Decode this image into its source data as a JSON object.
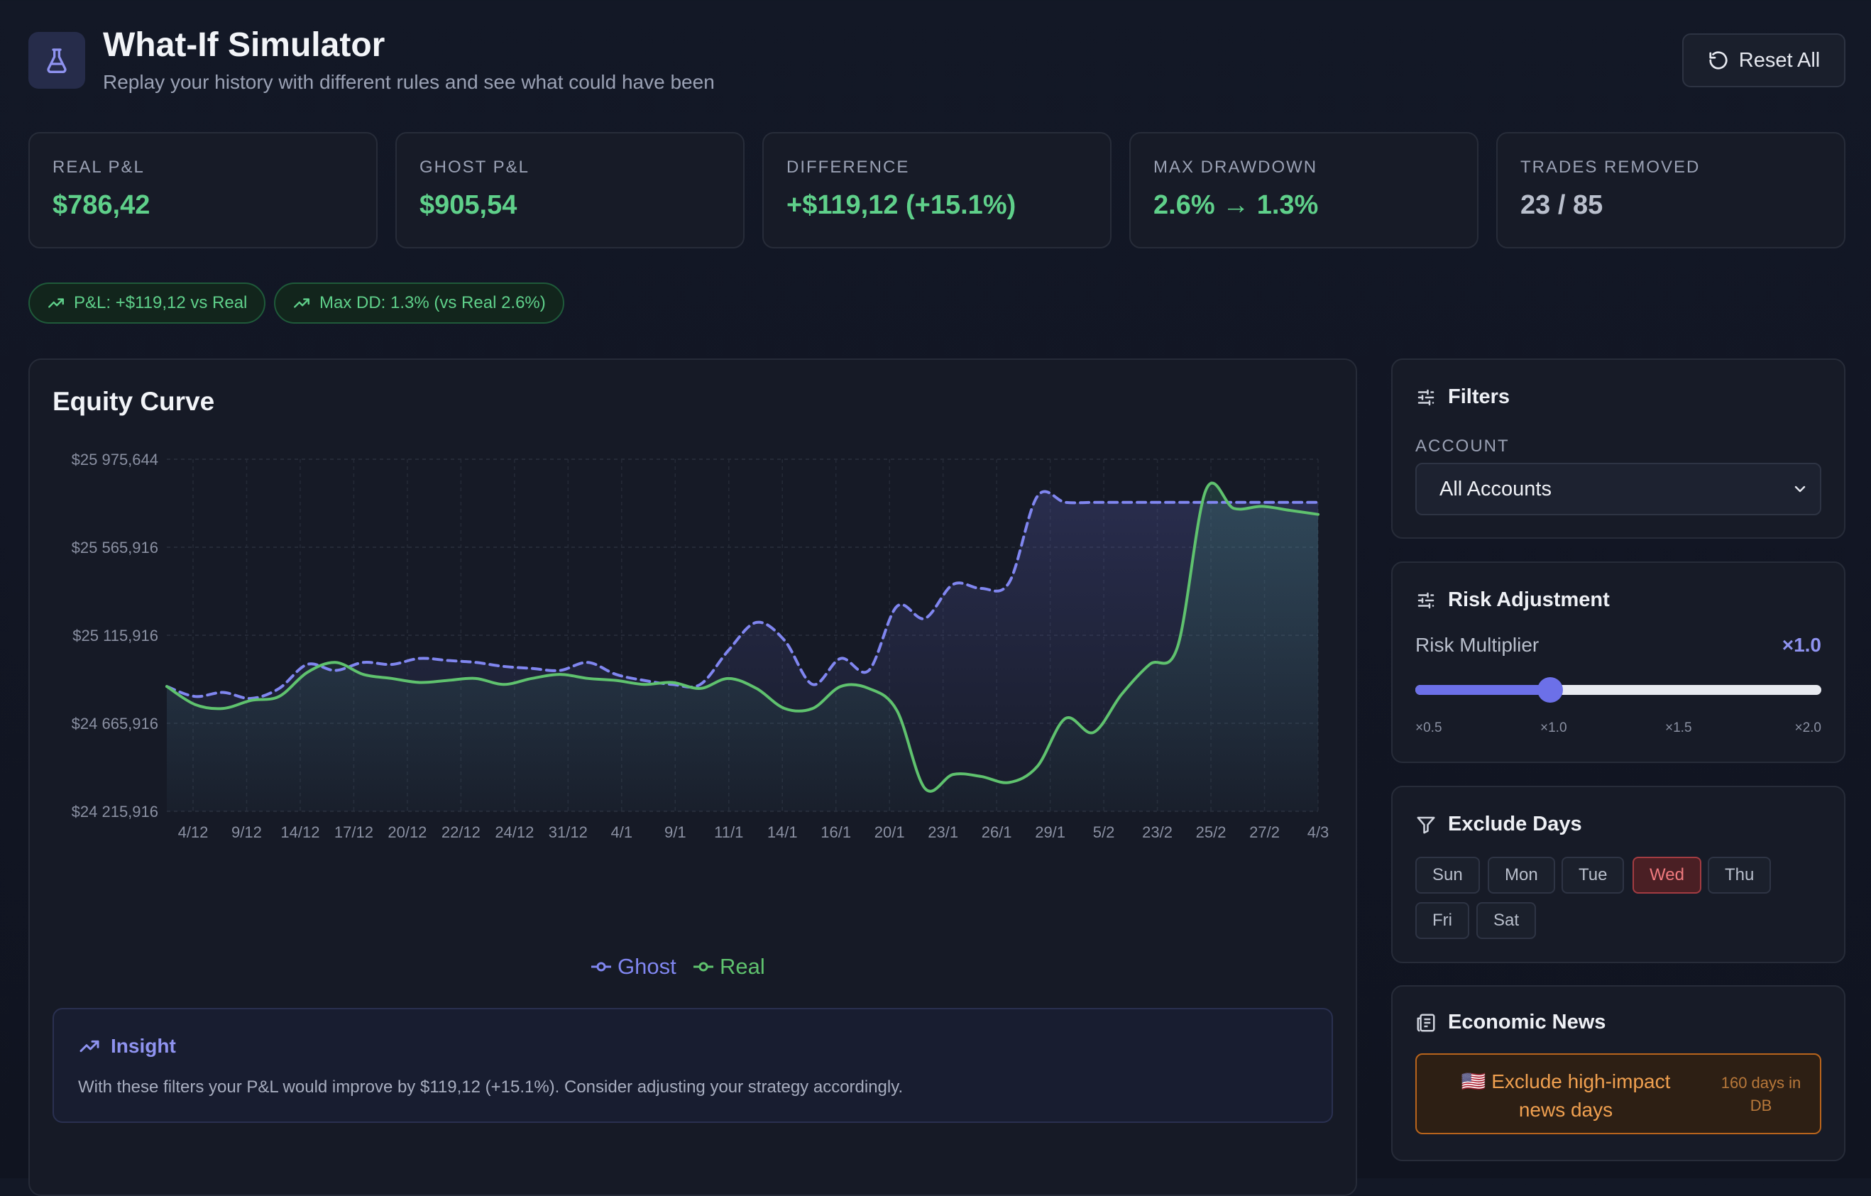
{
  "header": {
    "title": "What-If Simulator",
    "subtitle": "Replay your history with different rules and see what could have been",
    "reset_label": "Reset All"
  },
  "stats": [
    {
      "label": "REAL P&L",
      "value": "$786,42",
      "color": "#5fd08a"
    },
    {
      "label": "GHOST P&L",
      "value": "$905,54",
      "color": "#5fd08a"
    },
    {
      "label": "DIFFERENCE",
      "value": "+$119,12 (+15.1%)",
      "color": "#5fd08a"
    },
    {
      "label": "MAX DRAWDOWN",
      "value": "2.6% → 1.3%",
      "color": "#5fd08a"
    },
    {
      "label": "TRADES REMOVED",
      "value": "23 / 85",
      "color": "#b9bfcc"
    }
  ],
  "pills": [
    {
      "label": "P&L: +$119,12 vs Real"
    },
    {
      "label": "Max DD: 1.3% (vs Real 2.6%)"
    }
  ],
  "chart": {
    "title": "Equity Curve",
    "legend_ghost": "Ghost",
    "legend_real": "Real"
  },
  "chart_data": {
    "type": "line",
    "y_ticks": [
      "$25 975,644",
      "$25 565,916",
      "$25 115,916",
      "$24 665,916",
      "$24 215,916"
    ],
    "x_ticks": [
      "4/12",
      "9/12",
      "14/12",
      "17/12",
      "20/12",
      "22/12",
      "24/12",
      "31/12",
      "4/1",
      "9/1",
      "11/1",
      "14/1",
      "16/1",
      "20/1",
      "23/1",
      "26/1",
      "29/1",
      "5/2",
      "23/2",
      "25/2",
      "27/2",
      "4/3"
    ],
    "ylim": [
      24215916,
      25975644
    ],
    "series": [
      {
        "name": "Ghost",
        "color": "#8086f0",
        "style": "dashed",
        "values": [
          24840000,
          24790000,
          24810000,
          24780000,
          24830000,
          24950000,
          24920000,
          24960000,
          24950000,
          24980000,
          24970000,
          24960000,
          24940000,
          24930000,
          24920000,
          24960000,
          24900000,
          24870000,
          24850000,
          24850000,
          25020000,
          25160000,
          25070000,
          24850000,
          24980000,
          24920000,
          25240000,
          25180000,
          25350000,
          25330000,
          25360000,
          25790000,
          25760000,
          25760000,
          25760000,
          25760000,
          25760000,
          25760000,
          25760000,
          25760000,
          25760000,
          25760000
        ]
      },
      {
        "name": "Real",
        "color": "#5fc26e",
        "style": "solid",
        "values": [
          24840000,
          24750000,
          24730000,
          24770000,
          24790000,
          24910000,
          24960000,
          24900000,
          24880000,
          24860000,
          24870000,
          24880000,
          24850000,
          24880000,
          24900000,
          24880000,
          24870000,
          24850000,
          24860000,
          24830000,
          24880000,
          24830000,
          24730000,
          24730000,
          24840000,
          24830000,
          24720000,
          24330000,
          24400000,
          24390000,
          24360000,
          24440000,
          24680000,
          24610000,
          24800000,
          24950000,
          25040000,
          25820000,
          25730000,
          25740000,
          25720000,
          25700000
        ]
      }
    ]
  },
  "insight": {
    "title": "Insight",
    "text": "With these filters your P&L would improve by $119,12 (+15.1%). Consider adjusting your strategy accordingly."
  },
  "filters": {
    "title": "Filters",
    "account_label": "ACCOUNT",
    "account_value": "All Accounts"
  },
  "risk": {
    "title": "Risk Adjustment",
    "label": "Risk Multiplier",
    "value_label": "×1.0",
    "slider_fraction": 0.333,
    "ticks": [
      "×0.5",
      "×1.0",
      "×1.5",
      "×2.0"
    ]
  },
  "exclude_days": {
    "title": "Exclude Days",
    "days": [
      {
        "label": "Sun",
        "active": false
      },
      {
        "label": "Mon",
        "active": false
      },
      {
        "label": "Tue",
        "active": false
      },
      {
        "label": "Wed",
        "active": true
      },
      {
        "label": "Thu",
        "active": false
      },
      {
        "label": "Fri",
        "active": false
      },
      {
        "label": "Sat",
        "active": false
      }
    ]
  },
  "news": {
    "title": "Economic News",
    "button_line1": "🇺🇸 Exclude high-impact",
    "button_line2": "news days",
    "days_line1": "160 days in",
    "days_line2": "DB"
  }
}
